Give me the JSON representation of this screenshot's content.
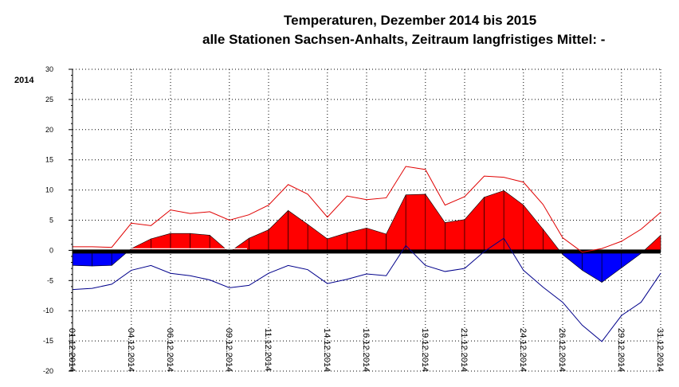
{
  "title": "Temperaturen, Dezember 2014 bis 2015",
  "subtitle": "alle Stationen Sachsen-Anhalts, Zeitraum langfristiges Mittel: -",
  "year_label": "2014",
  "colors": {
    "max_line": "#e00000",
    "min_line": "#00008b",
    "warm_fill": "#ff0000",
    "cold_fill": "#0000ff",
    "mean_line": "#000000",
    "grid": "#000000"
  },
  "chart_data": {
    "type": "area",
    "ylim": [
      -20,
      30
    ],
    "yticks": [
      30,
      25,
      20,
      15,
      10,
      5,
      0,
      -5,
      -10,
      -15,
      -20
    ],
    "grid": true,
    "x": [
      "01.12.2014",
      "02.12.2014",
      "03.12.2014",
      "04.12.2014",
      "05.12.2014",
      "06.12.2014",
      "07.12.2014",
      "08.12.2014",
      "09.12.2014",
      "10.12.2014",
      "11.12.2014",
      "12.12.2014",
      "13.12.2014",
      "14.12.2014",
      "15.12.2014",
      "16.12.2014",
      "17.12.2014",
      "18.12.2014",
      "19.12.2014",
      "20.12.2014",
      "21.12.2014",
      "22.12.2014",
      "23.12.2014",
      "24.12.2014",
      "25.12.2014",
      "26.12.2014",
      "27.12.2014",
      "28.12.2014",
      "29.12.2014",
      "30.12.2014",
      "31.12.2014"
    ],
    "xtick_labels": [
      "01.12.2014",
      "04.12.2014",
      "06.12.2014",
      "09.12.2014",
      "11.12.2014",
      "14.12.2014",
      "16.12.2014",
      "19.12.2014",
      "21.12.2014",
      "24.12.2014",
      "26.12.2014",
      "29.12.2014",
      "31.12.2014"
    ],
    "series": [
      {
        "role": "max",
        "values": [
          0.6,
          0.6,
          0.5,
          4.5,
          4.1,
          6.7,
          6.1,
          6.4,
          5.0,
          5.9,
          7.5,
          10.9,
          9.3,
          5.5,
          9.0,
          8.4,
          8.7,
          13.9,
          13.4,
          7.5,
          8.9,
          12.3,
          12.1,
          11.3,
          7.6,
          2.1,
          -0.3,
          0.3,
          1.5,
          3.5,
          6.3
        ]
      },
      {
        "role": "mean",
        "values": [
          -2.5,
          -2.6,
          -2.5,
          0.3,
          1.9,
          2.8,
          2.8,
          2.5,
          -0.3,
          2.0,
          3.4,
          6.6,
          4.3,
          1.9,
          2.9,
          3.7,
          2.7,
          9.2,
          9.3,
          4.6,
          5.1,
          8.8,
          9.9,
          7.5,
          3.5,
          -0.7,
          -3.3,
          -5.3,
          -2.9,
          -0.5,
          2.5
        ]
      },
      {
        "role": "min",
        "values": [
          -6.5,
          -6.3,
          -5.6,
          -3.3,
          -2.5,
          -3.8,
          -4.2,
          -4.9,
          -6.2,
          -5.8,
          -3.8,
          -2.5,
          -3.2,
          -5.5,
          -4.8,
          -3.9,
          -4.2,
          0.8,
          -2.5,
          -3.5,
          -3.0,
          -0.2,
          2.0,
          -3.3,
          -6.1,
          -8.6,
          -12.4,
          -15.1,
          -10.8,
          -8.6,
          -3.8
        ]
      }
    ]
  }
}
